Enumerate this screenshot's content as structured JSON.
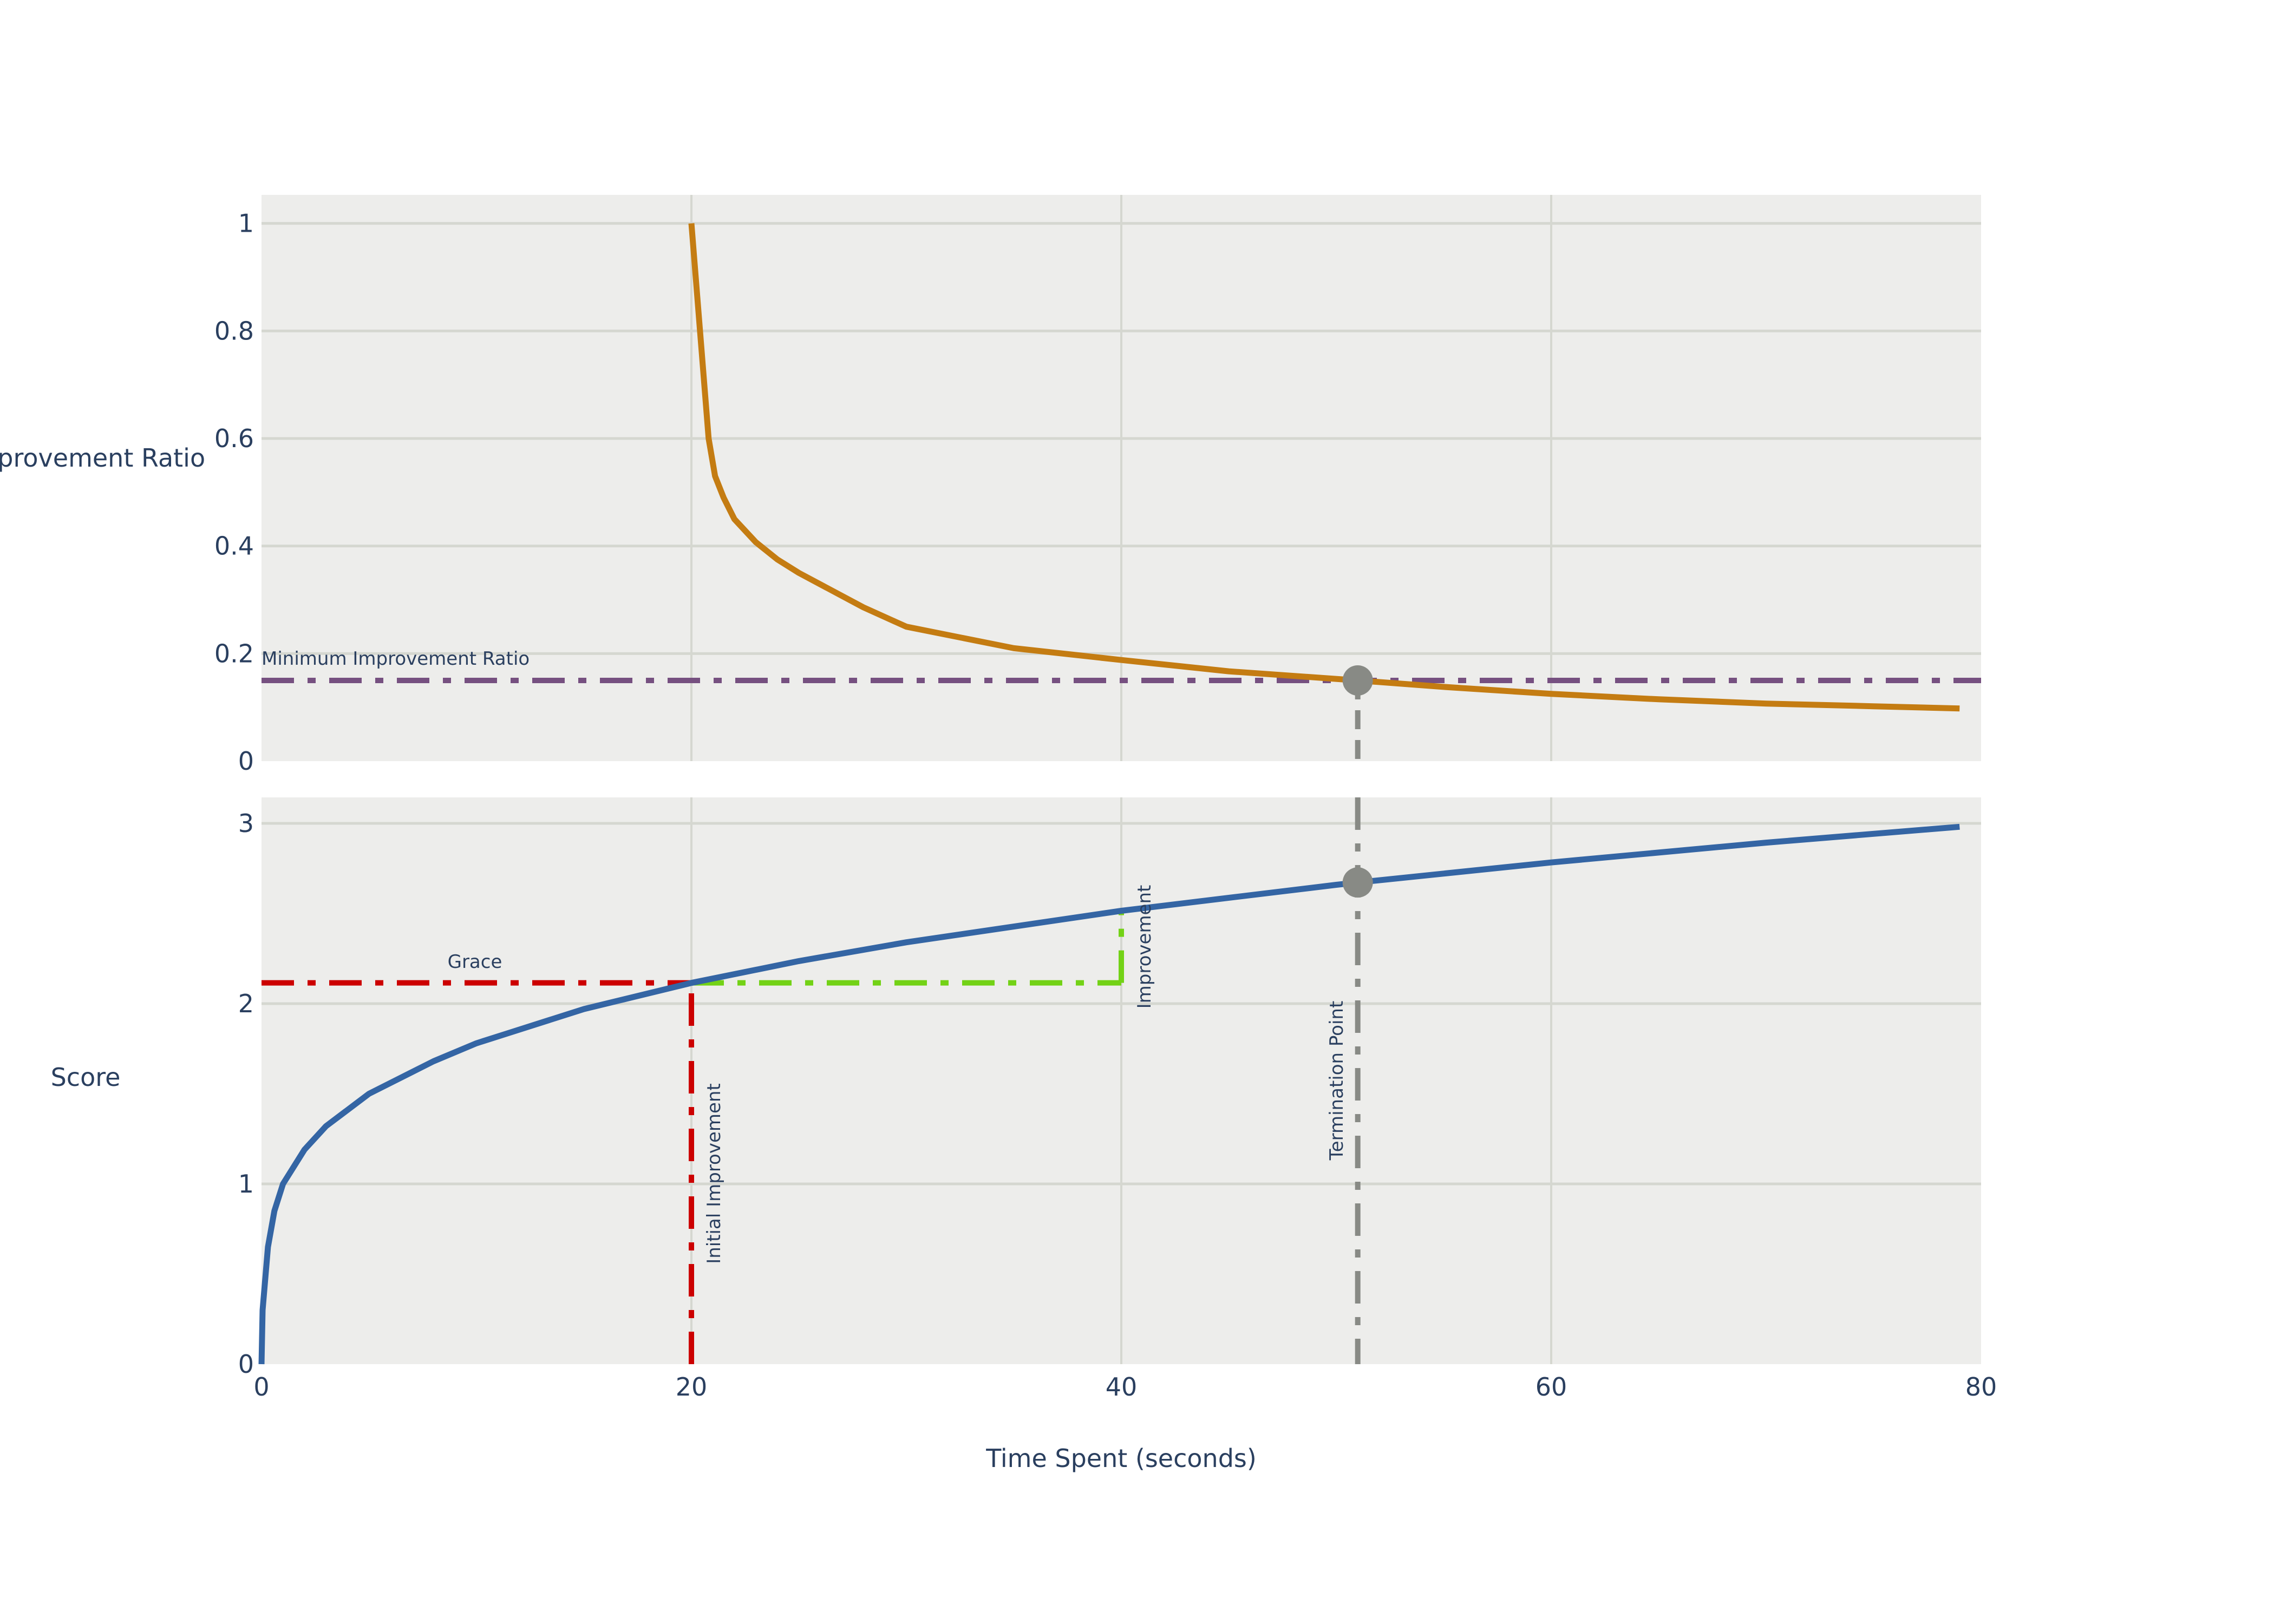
{
  "chart_data": [
    {
      "type": "line",
      "panel": "top",
      "ylabel": "Improvement Ratio",
      "xlim": [
        0,
        80
      ],
      "ylim": [
        0,
        1.053
      ],
      "yticks": [
        "0",
        "0.2",
        "0.4",
        "0.6",
        "0.8",
        "1"
      ],
      "ytick_values": [
        0,
        0.2,
        0.4,
        0.6,
        0.8,
        1
      ],
      "grid": true,
      "series": [
        {
          "color": "#c47c12",
          "x": [
            20,
            20.4,
            20.8,
            21.1,
            21.5,
            22,
            23,
            24,
            25,
            28,
            30,
            35,
            40,
            45,
            51,
            55,
            60,
            65,
            70,
            75,
            79
          ],
          "y": [
            1.0,
            0.8,
            0.6,
            0.53,
            0.49,
            0.45,
            0.407,
            0.375,
            0.35,
            0.286,
            0.25,
            0.21,
            0.188,
            0.167,
            0.15,
            0.138,
            0.125,
            0.115,
            0.107,
            0.102,
            0.098
          ]
        }
      ],
      "hlines": [
        {
          "y": 0.15,
          "color": "#765080",
          "dash": "dashdot",
          "label": "Minimum Improvement Ratio"
        }
      ],
      "markers": [
        {
          "x": 51,
          "y": 0.15,
          "color": "#888a85"
        }
      ]
    },
    {
      "type": "line",
      "panel": "bottom",
      "ylabel": "Score",
      "xlabel": "Time Spent (seconds)",
      "xlim": [
        0,
        80
      ],
      "ylim": [
        0,
        3.144
      ],
      "xticks": [
        "0",
        "20",
        "40",
        "60",
        "80"
      ],
      "xtick_values": [
        0,
        20,
        40,
        60,
        80
      ],
      "yticks": [
        "0",
        "1",
        "2",
        "3"
      ],
      "ytick_values": [
        0,
        1,
        2,
        3
      ],
      "grid": true,
      "series": [
        {
          "color": "#3465a4",
          "x": [
            0,
            0.05,
            0.3,
            0.6,
            1,
            2,
            3,
            5,
            8,
            10,
            15,
            20,
            25,
            30,
            40,
            50,
            51,
            60,
            70,
            79
          ],
          "y": [
            0,
            0.3,
            0.65,
            0.85,
            1.0,
            1.19,
            1.32,
            1.5,
            1.68,
            1.78,
            1.97,
            2.115,
            2.236,
            2.34,
            2.515,
            2.659,
            2.672,
            2.783,
            2.893,
            2.981
          ]
        }
      ],
      "segments": [
        {
          "name": "grace",
          "x": [
            0,
            20
          ],
          "y": [
            2.115,
            2.115
          ],
          "color": "#cc0000",
          "label": "Grace"
        },
        {
          "name": "initial-improvement",
          "x": [
            20,
            20
          ],
          "y": [
            0,
            2.115
          ],
          "color": "#cc0000",
          "label": "Initial Improvement"
        },
        {
          "name": "improvement-horizontal",
          "x": [
            20,
            40
          ],
          "y": [
            2.115,
            2.115
          ],
          "color": "#73d216"
        },
        {
          "name": "improvement",
          "x": [
            40,
            40
          ],
          "y": [
            2.115,
            2.515
          ],
          "color": "#73d216",
          "label": "Improvement"
        }
      ],
      "vline": {
        "x": 51,
        "color": "#888a85",
        "label": "Termination Point"
      },
      "markers": [
        {
          "x": 51,
          "y": 2.672,
          "color": "#888a85"
        }
      ]
    }
  ],
  "colors": {
    "plot_bg": "#ededeb",
    "grid": "#d5d7d0",
    "text": "#2a3f5f"
  }
}
